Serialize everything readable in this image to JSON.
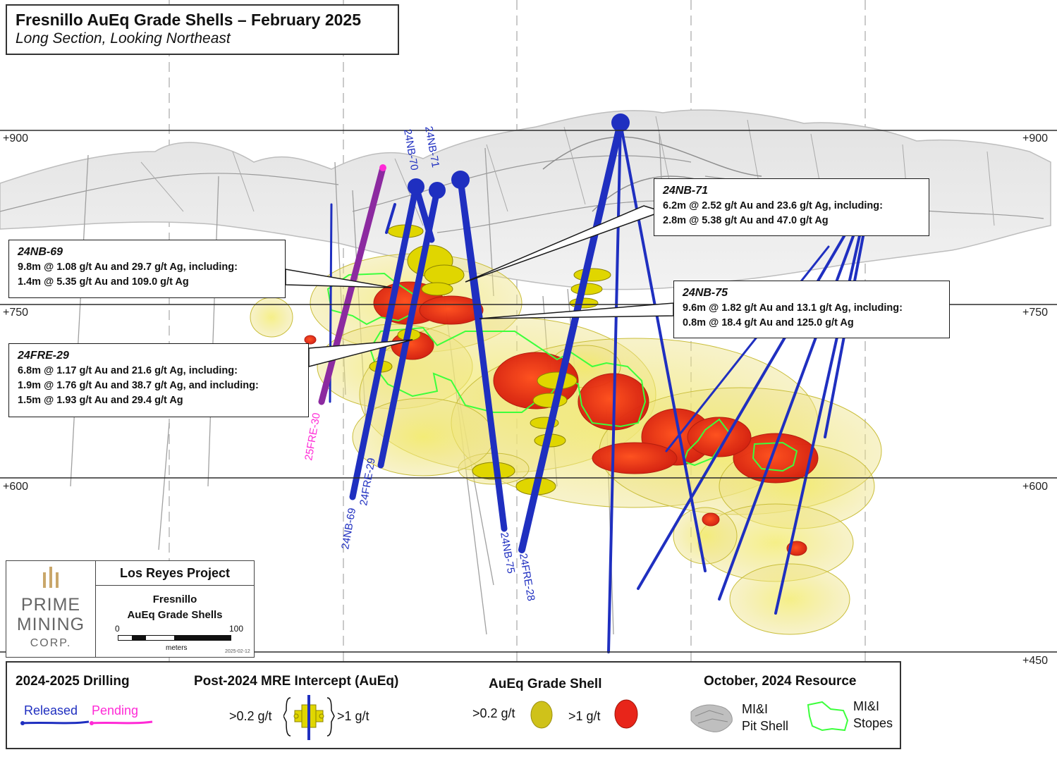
{
  "title": {
    "main": "Fresnillo AuEq Grade Shells – February 2025",
    "sub": "Long Section, Looking Northeast"
  },
  "elevations": {
    "e900": "+900",
    "e750": "+750",
    "e600": "+600",
    "e450": "+450"
  },
  "drill_labels": {
    "h24nb70": "24NB-70",
    "h24nb71": "24NB-71",
    "h25fre30": "25FRE-30",
    "h24fre29": "24FRE-29",
    "h24nb69": "24NB-69",
    "h24nb75": "24NB-75",
    "h24fre28": "24FRE-28"
  },
  "callouts": {
    "nb71": {
      "hole": "24NB-71",
      "l1": "6.2m @ 2.52 g/t Au and 23.6 g/t Ag, including:",
      "l2": "2.8m @ 5.38 g/t Au and 47.0 g/t Ag"
    },
    "nb69": {
      "hole": "24NB-69",
      "l1": "9.8m @ 1.08 g/t Au and 29.7 g/t Ag, including:",
      "l2": "1.4m @ 5.35 g/t Au and 109.0 g/t Ag"
    },
    "nb75": {
      "hole": "24NB-75",
      "l1": "9.6m @ 1.82 g/t Au and 13.1 g/t Ag, including:",
      "l2": "0.8m @ 18.4 g/t Au and 125.0 g/t Ag"
    },
    "fre29": {
      "hole": "24FRE-29",
      "l1": "6.8m @ 1.17 g/t Au and 21.6 g/t Ag, including:",
      "l2": "1.9m @ 1.76 g/t Au and 38.7 g/t Ag, and including:",
      "l3": "1.5m @ 1.93 g/t Au and 29.4 g/t Ag"
    }
  },
  "logo": {
    "w1": "PRIME",
    "w2": "MINING",
    "w3": "CORP.",
    "project": "Los Reyes Project",
    "map_l1": "Fresnillo",
    "map_l2": "AuEq Grade Shells",
    "scale_min": "0",
    "scale_max": "100",
    "scale_unit": "meters",
    "date": "2025-02-12"
  },
  "legend": {
    "drilling_header": "2024-2025 Drilling",
    "released": "Released",
    "pending": "Pending",
    "intercept_header": "Post-2024 MRE Intercept (AuEq)",
    "int_low": ">0.2 g/t",
    "int_high": ">1 g/t",
    "shell_header": "AuEq Grade Shell",
    "shell_low": ">0.2 g/t",
    "shell_high": ">1 g/t",
    "resource_header": "October, 2024 Resource",
    "pit_l1": "MI&I",
    "pit_l2": "Pit Shell",
    "stopes_l1": "MI&I",
    "stopes_l2": "Stopes"
  },
  "colors": {
    "released_hole": "#1f2fc0",
    "pending_hole": "#e23ad0",
    "shell_low": "#e6e04a",
    "shell_high": "#e8251a",
    "stopes": "#33ee33",
    "pit_shell": "#c8c8c8"
  }
}
